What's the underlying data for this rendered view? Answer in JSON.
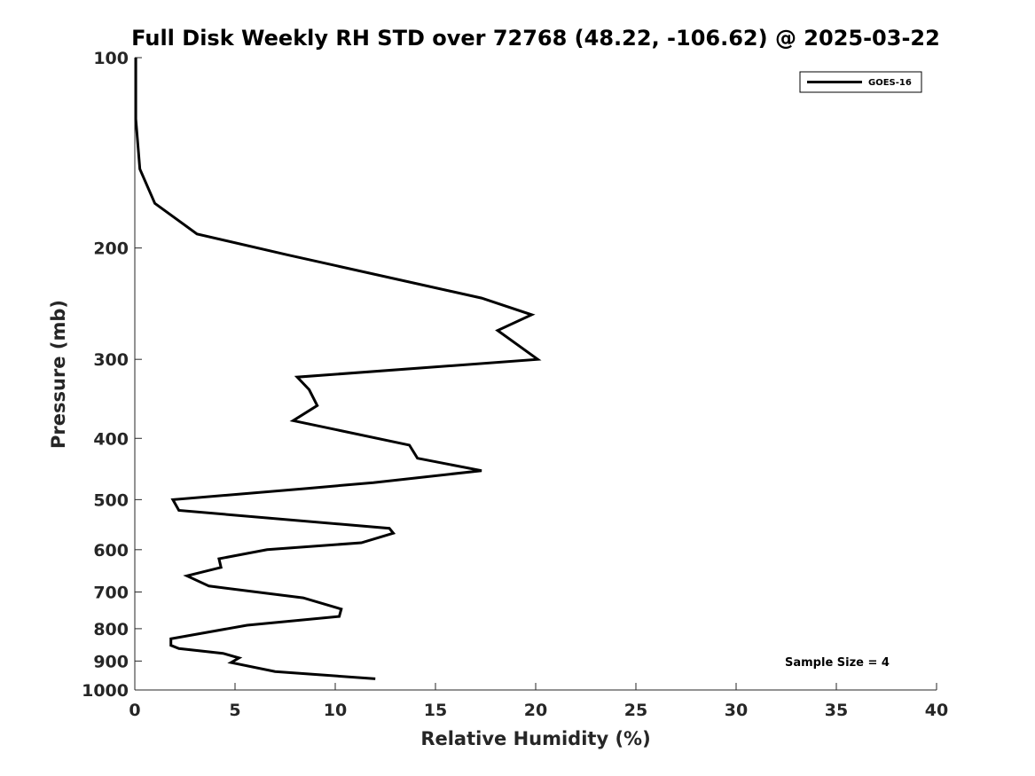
{
  "chart_data": {
    "type": "line",
    "title": "Full Disk Weekly RH STD over 72768 (48.22, -106.62) @ 2025-03-22",
    "xlabel": "Relative Humidity (%)",
    "ylabel": "Pressure (mb)",
    "xlim": [
      0,
      40
    ],
    "ylim": [
      100,
      1000
    ],
    "y_scale": "log",
    "y_reversed": true,
    "x_ticks": [
      0,
      5,
      10,
      15,
      20,
      25,
      30,
      35,
      40
    ],
    "x_tick_labels": [
      "0",
      "5",
      "10",
      "15",
      "20",
      "25",
      "30",
      "35",
      "40"
    ],
    "y_ticks": [
      100,
      200,
      300,
      400,
      500,
      600,
      700,
      800,
      900,
      1000
    ],
    "y_tick_labels": [
      "100",
      "200",
      "300",
      "400",
      "500",
      "600",
      "700",
      "800",
      "900",
      "1000"
    ],
    "grid": false,
    "legend": {
      "position": "top-right",
      "entries": [
        "GOES-16"
      ]
    },
    "annotation": "Sample Size = 4",
    "series": [
      {
        "name": "GOES-16",
        "color": "#000000",
        "x": [
          0.05,
          0.05,
          0.25,
          1.0,
          3.1,
          7.6,
          17.3,
          19.8,
          18.1,
          20.1,
          8.1,
          8.7,
          9.1,
          7.9,
          13.7,
          14.1,
          17.3,
          11.9,
          8.6,
          1.9,
          2.2,
          12.7,
          12.9,
          11.3,
          6.6,
          4.2,
          4.3,
          2.6,
          3.7,
          8.4,
          10.3,
          10.2,
          5.6,
          1.8,
          1.8,
          2.2,
          4.4,
          5.2,
          4.8,
          7.0,
          12.0
        ],
        "y": [
          100,
          125,
          150,
          170,
          190,
          205,
          240,
          255,
          270,
          300,
          320,
          335,
          355,
          375,
          410,
          430,
          450,
          470,
          480,
          500,
          520,
          555,
          565,
          585,
          600,
          620,
          640,
          660,
          685,
          715,
          745,
          765,
          790,
          830,
          850,
          860,
          875,
          890,
          905,
          935,
          960
        ]
      }
    ]
  }
}
